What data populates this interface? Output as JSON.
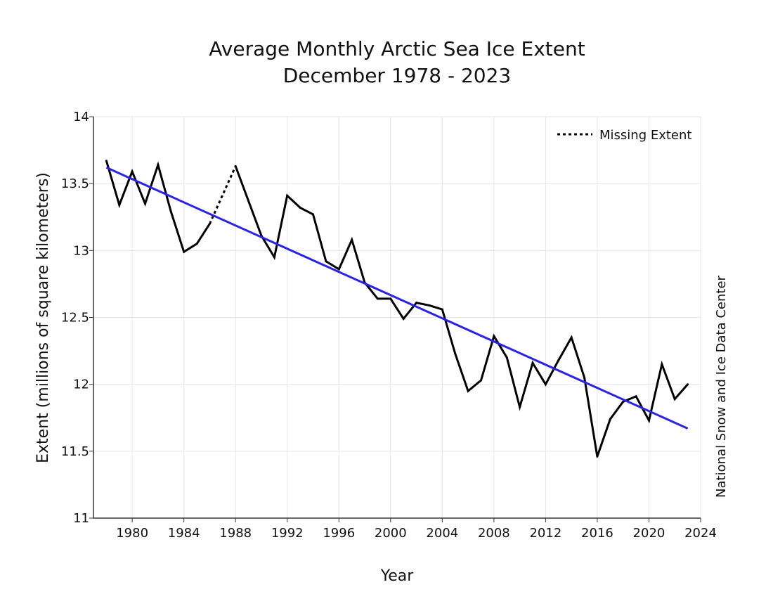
{
  "chart_data": {
    "type": "line",
    "title": "Average Monthly Arctic Sea Ice Extent",
    "subtitle": "December 1978 - 2023",
    "xlabel": "Year",
    "ylabel": "Extent (millions of square kilometers)",
    "credit": "National Snow and Ice Data Center",
    "xlim": [
      1977,
      2024
    ],
    "ylim": [
      11,
      14
    ],
    "x_ticks": [
      1980,
      1984,
      1988,
      1992,
      1996,
      2000,
      2004,
      2008,
      2012,
      2016,
      2020,
      2024
    ],
    "y_ticks": [
      11,
      11.5,
      12,
      12.5,
      13,
      13.5,
      14
    ],
    "y_tick_labels": [
      "11",
      "11.5",
      "12",
      "12.5",
      "13",
      "13.5",
      "14"
    ],
    "grid": true,
    "legend": {
      "position": "top-right",
      "entries": [
        {
          "label": "Missing Extent",
          "style": "dotted",
          "color": "#000000"
        }
      ]
    },
    "series": [
      {
        "style": "solid",
        "color": "#000000",
        "x": [
          1978,
          1979,
          1980,
          1981,
          1982,
          1983,
          1984,
          1985,
          1986,
          1987,
          1988,
          1989,
          1990,
          1991,
          1992,
          1993,
          1994,
          1995,
          1996,
          1997,
          1998,
          1999,
          2000,
          2001,
          2002,
          2003,
          2004,
          2005,
          2006,
          2007,
          2008,
          2009,
          2010,
          2011,
          2012,
          2013,
          2014,
          2015,
          2016,
          2017,
          2018,
          2019,
          2020,
          2021,
          2022,
          2023
        ],
        "y": [
          13.67,
          13.34,
          13.59,
          13.35,
          13.64,
          13.29,
          12.99,
          13.05,
          13.2,
          null,
          13.63,
          13.37,
          13.11,
          12.95,
          13.41,
          13.32,
          13.27,
          12.92,
          12.86,
          13.08,
          12.76,
          12.64,
          12.64,
          12.49,
          12.61,
          12.59,
          12.56,
          12.23,
          11.95,
          12.03,
          12.36,
          12.2,
          11.83,
          12.16,
          12.0,
          12.18,
          12.35,
          12.05,
          11.46,
          11.74,
          11.87,
          11.91,
          11.73,
          12.15,
          11.89,
          12.0
        ]
      },
      {
        "name": "Missing Extent",
        "style": "dotted",
        "color": "#000000",
        "x": [
          1986,
          1988
        ],
        "y": [
          13.2,
          13.63
        ]
      },
      {
        "style": "trend",
        "color": "#2b22e6",
        "x": [
          1978,
          2023
        ],
        "y": [
          13.62,
          11.67
        ]
      }
    ]
  }
}
